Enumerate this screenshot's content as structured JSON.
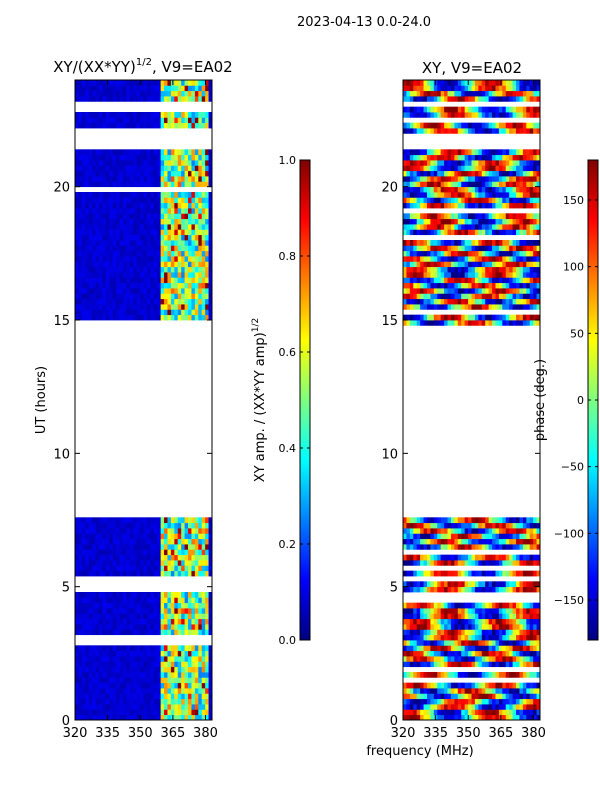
{
  "figure": {
    "suptitle": "2023-04-13 0.0-24.0",
    "shared_xlabel": "frequency (MHz)"
  },
  "chart_data": [
    {
      "type": "heatmap",
      "title_main": "XY/(XX*YY)",
      "title_exp": "1/2",
      "title_tail": ", V9=EA02",
      "xlabel": "",
      "ylabel": "UT (hours)",
      "xlim": [
        320,
        383
      ],
      "ylim": [
        0,
        24
      ],
      "xticks": [
        320,
        335,
        350,
        365,
        380
      ],
      "yticks": [
        0,
        5,
        10,
        15,
        20
      ],
      "colormap": "jet",
      "colorbar": {
        "label_main": "XY amp. / (XX*YY amp)",
        "label_exp": "1/2",
        "range": [
          0.0,
          1.0
        ],
        "ticks": [
          "0.0",
          "0.2",
          "0.4",
          "0.6",
          "0.8",
          "1.0"
        ]
      },
      "data_gaps_ut": [
        [
          7.6,
          15.0
        ],
        [
          21.3,
          22.1
        ],
        [
          22.8,
          23.2
        ]
      ],
      "high_amplitude_band_mhz": [
        360,
        382
      ],
      "background_value": 0.05
    },
    {
      "type": "heatmap",
      "title": "XY, V9=EA02",
      "xlabel": "",
      "ylabel": "",
      "xlim": [
        320,
        383
      ],
      "ylim": [
        0,
        24
      ],
      "xticks": [
        320,
        335,
        350,
        365,
        380
      ],
      "yticks": [
        0,
        5,
        10,
        15,
        20
      ],
      "colormap": "jet",
      "colorbar": {
        "label": "phase (deg.)",
        "range": [
          -180,
          180
        ],
        "ticks": [
          "−150",
          "−100",
          "−50",
          "0",
          "50",
          "100",
          "150"
        ]
      },
      "data_gaps_ut": [
        [
          7.6,
          14.9
        ],
        [
          21.3,
          22.0
        ]
      ]
    }
  ]
}
